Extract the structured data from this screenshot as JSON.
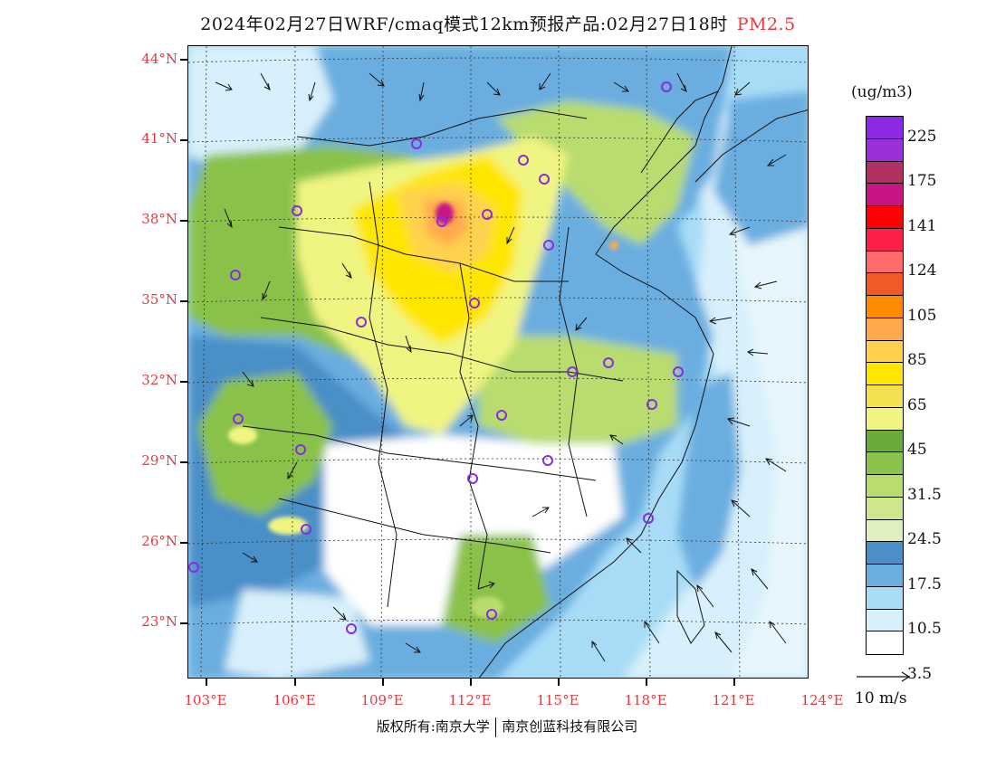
{
  "title": {
    "main": "2024年02月27日WRF/cmaq模式12km预报产品:02月27日18时",
    "pollutant": "PM2.5"
  },
  "axes": {
    "lat_labels": [
      "44°N",
      "41°N",
      "38°N",
      "35°N",
      "32°N",
      "29°N",
      "26°N",
      "23°N"
    ],
    "lon_labels": [
      "103°E",
      "106°E",
      "109°E",
      "112°E",
      "115°E",
      "118°E",
      "121°E",
      "124°E"
    ]
  },
  "colorbar": {
    "unit": "(ug/m3)",
    "colors": [
      "#8a2be2",
      "#9b30d9",
      "#b03060",
      "#c71585",
      "#ff0000",
      "#ff1f4b",
      "#ff6a6a",
      "#f05a28",
      "#ff8c00",
      "#ffa94d",
      "#ffd24d",
      "#ffe600",
      "#f5e050",
      "#f0f582",
      "#6aaa3a",
      "#8ac24a",
      "#b8dc6e",
      "#cfe68c",
      "#e0efc0",
      "#4a8fc8",
      "#6aaee0",
      "#a8dcf6",
      "#d8f0fb",
      "#ffffff"
    ],
    "labels": [
      "225",
      "175",
      "141",
      "124",
      "105",
      "85",
      "65",
      "45",
      "31.5",
      "24.5",
      "17.5",
      "10.5",
      "3.5"
    ]
  },
  "wind_reference": "10 m/s",
  "credit": {
    "left": "版权所有:南京大学",
    "right": "南京创蓝科技有限公司"
  },
  "legend_colors": {
    "label_red": "#e8383d",
    "station_circle": "#8a2be2"
  }
}
